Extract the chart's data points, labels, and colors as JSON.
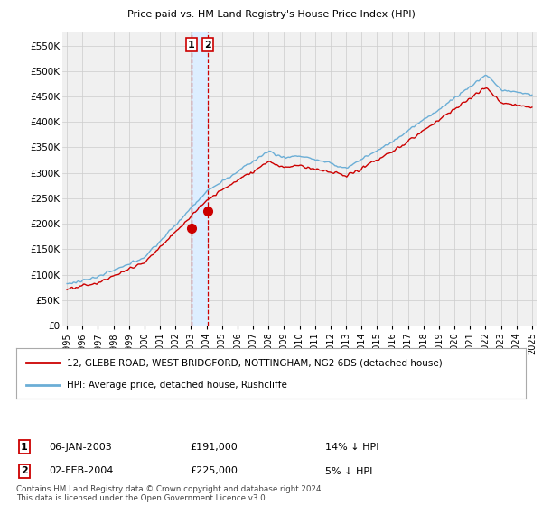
{
  "title": "12, GLEBE ROAD, WEST BRIDGFORD, NOTTINGHAM, NG2 6DS",
  "subtitle": "Price paid vs. HM Land Registry's House Price Index (HPI)",
  "ylabel_ticks": [
    "£0",
    "£50K",
    "£100K",
    "£150K",
    "£200K",
    "£250K",
    "£300K",
    "£350K",
    "£400K",
    "£450K",
    "£500K",
    "£550K"
  ],
  "ytick_values": [
    0,
    50000,
    100000,
    150000,
    200000,
    250000,
    300000,
    350000,
    400000,
    450000,
    500000,
    550000
  ],
  "ylim": [
    0,
    575000
  ],
  "xlim_left": 1994.7,
  "xlim_right": 2025.3,
  "legend_line1": "12, GLEBE ROAD, WEST BRIDGFORD, NOTTINGHAM, NG2 6DS (detached house)",
  "legend_line2": "HPI: Average price, detached house, Rushcliffe",
  "sale1_year": 2003.02,
  "sale1_price": 191000,
  "sale2_year": 2004.08,
  "sale2_price": 225000,
  "footnote": "Contains HM Land Registry data © Crown copyright and database right 2024.\nThis data is licensed under the Open Government Licence v3.0.",
  "hpi_color": "#6baed6",
  "sale_color": "#cc0000",
  "grid_color": "#cccccc",
  "bg_color": "#ffffff",
  "plot_bg": "#f0f0f0",
  "shade_color": "#ddeeff",
  "sale1_date_str": "06-JAN-2003",
  "sale2_date_str": "02-FEB-2004",
  "sale1_hpi_str": "14% ↓ HPI",
  "sale2_hpi_str": "5% ↓ HPI"
}
